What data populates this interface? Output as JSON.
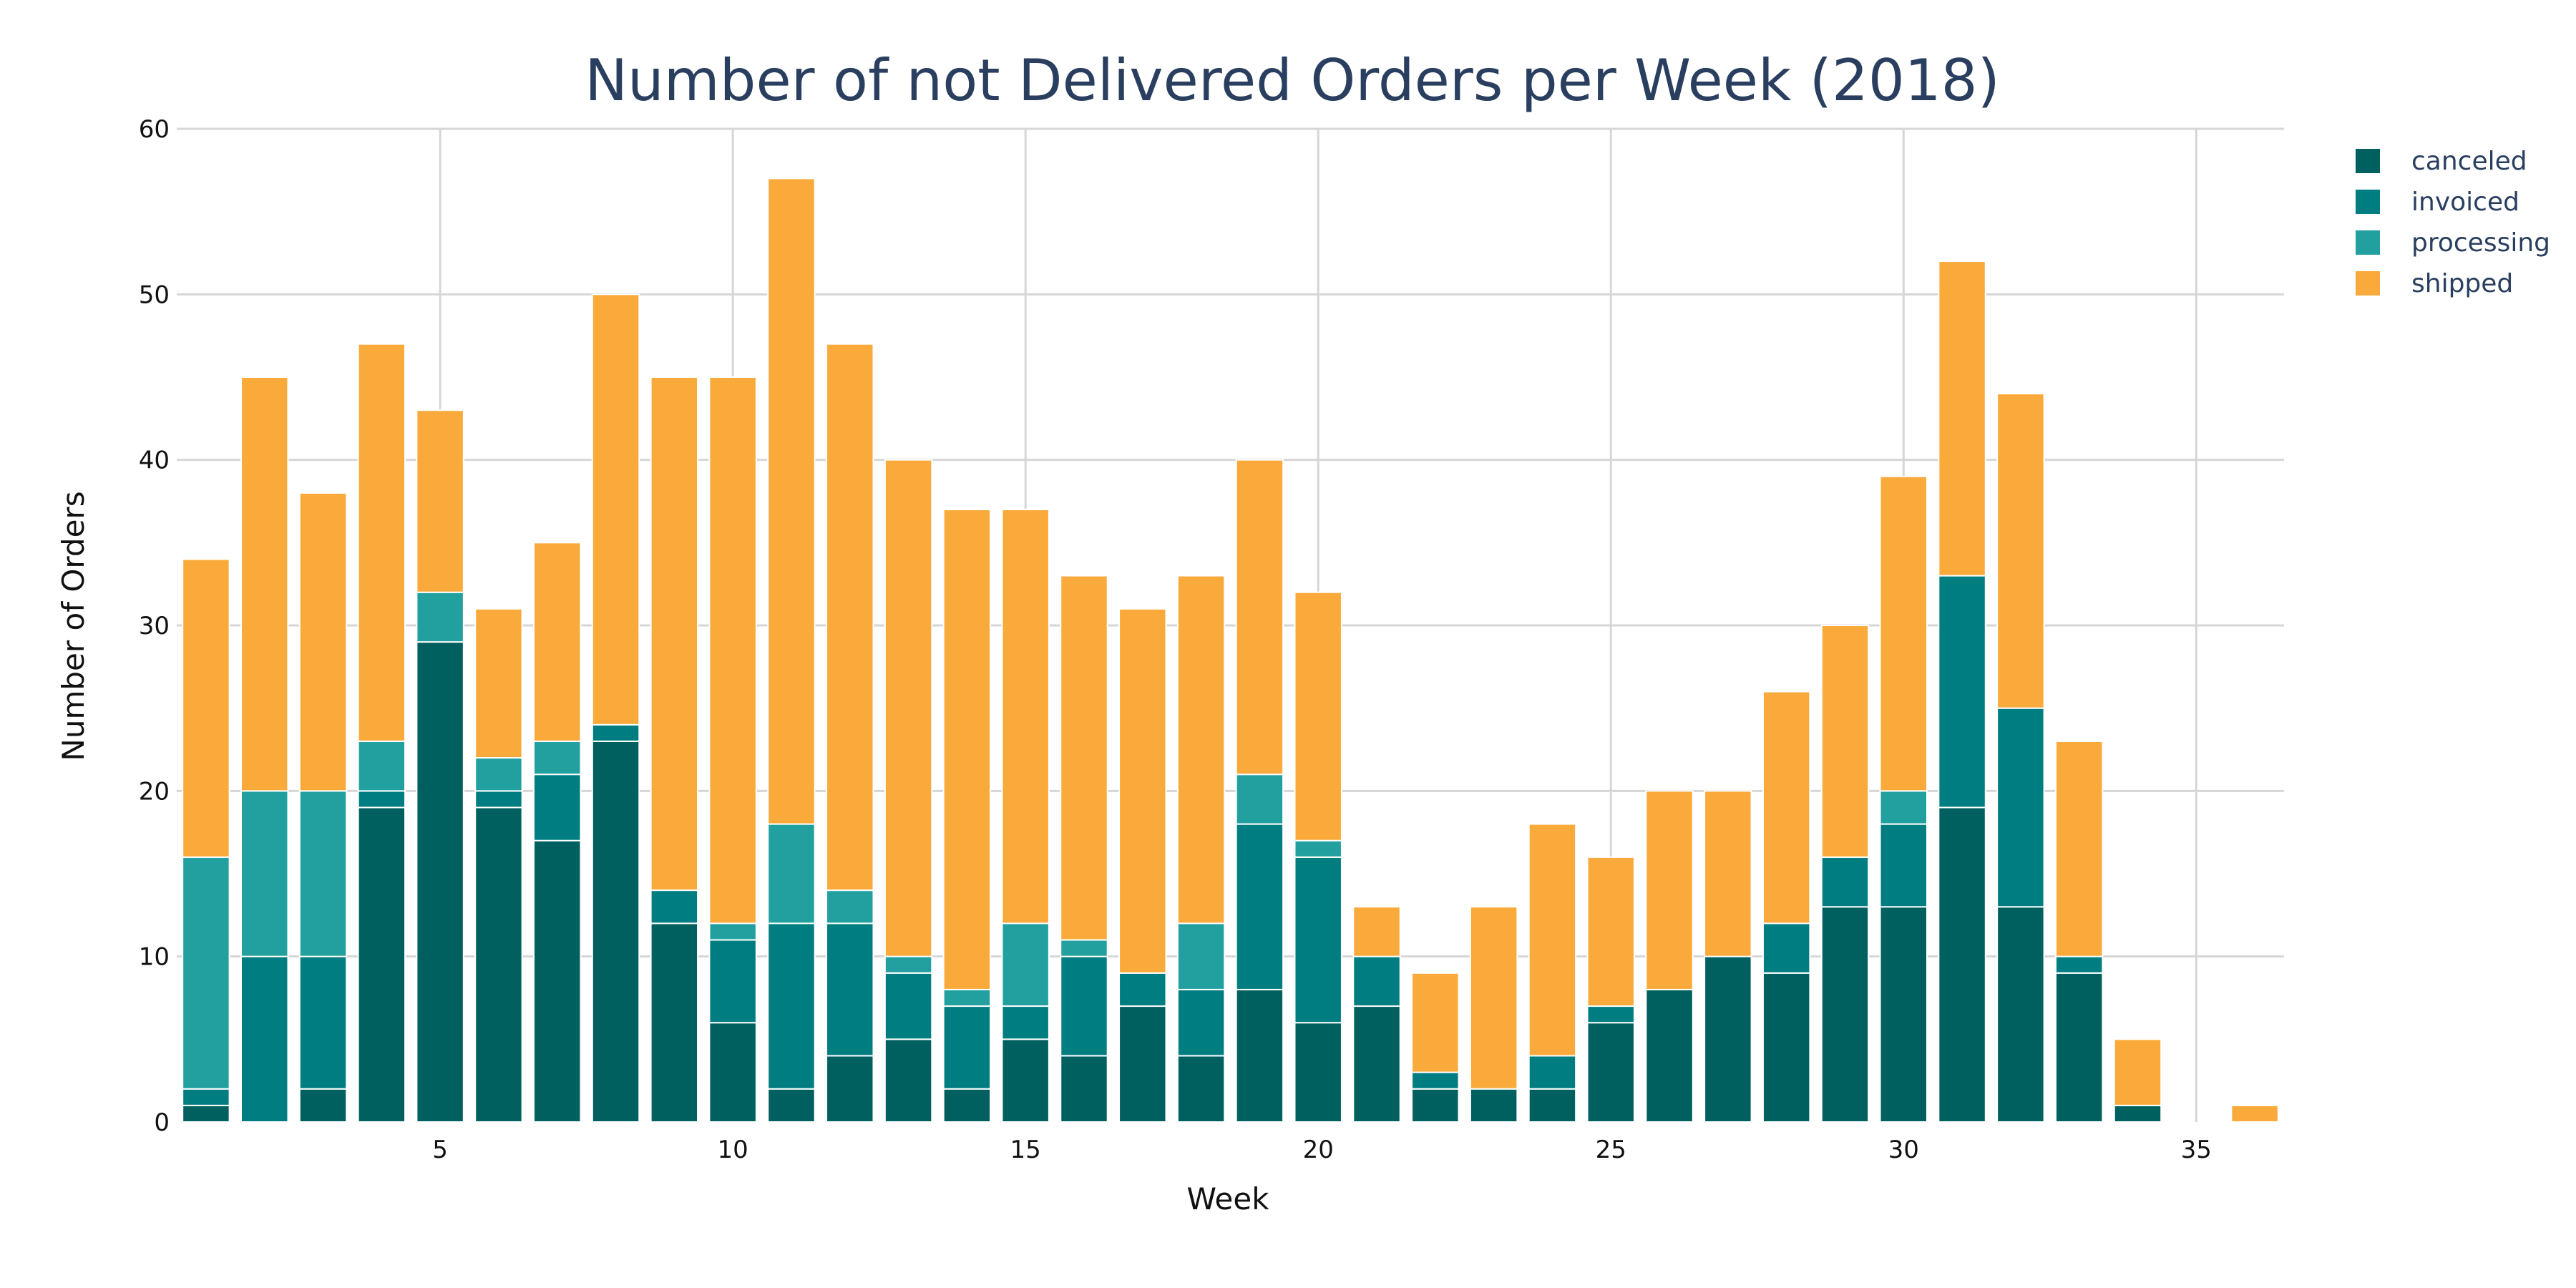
{
  "chart_data": {
    "type": "bar",
    "stacked": true,
    "title": "Number of not Delivered Orders per Week (2018)",
    "xlabel": "Week",
    "ylabel": "Number of Orders",
    "x": [
      1,
      2,
      3,
      4,
      5,
      6,
      7,
      8,
      9,
      10,
      11,
      12,
      13,
      14,
      15,
      16,
      17,
      18,
      19,
      20,
      21,
      22,
      23,
      24,
      25,
      26,
      27,
      28,
      29,
      30,
      31,
      32,
      33,
      34,
      35,
      36
    ],
    "xlim": [
      0.5,
      36.5
    ],
    "ylim": [
      0,
      60
    ],
    "x_ticks": [
      "5",
      "10",
      "15",
      "20",
      "25",
      "30",
      "35"
    ],
    "y_ticks": [
      "0",
      "10",
      "20",
      "30",
      "40",
      "50",
      "60"
    ],
    "grid": true,
    "legend_position": "top-right",
    "series": [
      {
        "name": "canceled",
        "color": "#00605f",
        "values": [
          1,
          0,
          2,
          19,
          29,
          19,
          17,
          23,
          12,
          6,
          2,
          4,
          5,
          2,
          5,
          4,
          7,
          4,
          8,
          6,
          7,
          2,
          2,
          2,
          6,
          8,
          10,
          9,
          13,
          13,
          19,
          13,
          9,
          1,
          0,
          0
        ]
      },
      {
        "name": "invoiced",
        "color": "#007d80",
        "values": [
          1,
          10,
          8,
          1,
          0,
          1,
          4,
          1,
          2,
          5,
          10,
          8,
          4,
          5,
          2,
          6,
          2,
          4,
          10,
          10,
          3,
          1,
          0,
          2,
          1,
          0,
          0,
          3,
          3,
          5,
          14,
          12,
          1,
          0,
          0,
          0
        ]
      },
      {
        "name": "processing",
        "color": "#22a0a0",
        "values": [
          14,
          10,
          10,
          3,
          3,
          2,
          2,
          0,
          0,
          1,
          6,
          2,
          1,
          1,
          5,
          1,
          0,
          4,
          3,
          1,
          0,
          0,
          0,
          0,
          0,
          0,
          0,
          0,
          0,
          2,
          0,
          0,
          0,
          0,
          0,
          0
        ]
      },
      {
        "name": "shipped",
        "color": "#f9aa3a",
        "values": [
          18,
          25,
          18,
          24,
          11,
          9,
          12,
          26,
          31,
          33,
          39,
          33,
          30,
          29,
          25,
          22,
          22,
          21,
          19,
          15,
          3,
          6,
          11,
          14,
          9,
          12,
          10,
          14,
          14,
          19,
          19,
          19,
          13,
          4,
          0,
          1
        ]
      }
    ]
  }
}
